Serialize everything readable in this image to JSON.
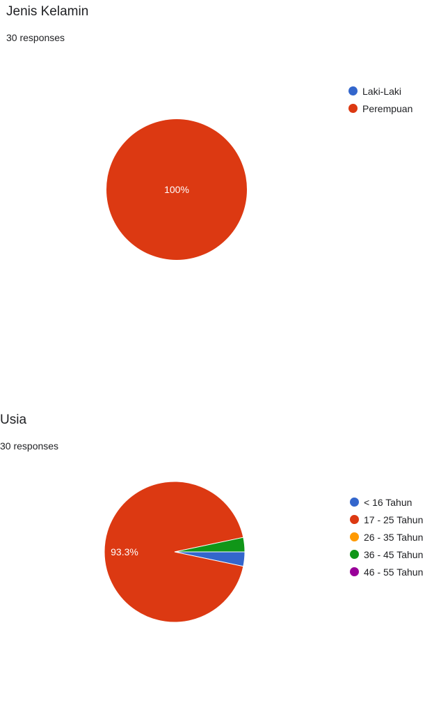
{
  "chart_data": [
    {
      "type": "pie",
      "title": "Jenis Kelamin",
      "subtitle": "30 responses",
      "categories": [
        "Laki-Laki",
        "Perempuan"
      ],
      "values": [
        0,
        100
      ],
      "data_labels": [
        "",
        "100%"
      ],
      "colors": [
        "#3366cc",
        "#dc3912"
      ],
      "legend": "right"
    },
    {
      "type": "pie",
      "title": "Usia",
      "subtitle": "30 responses",
      "categories": [
        "< 16 Tahun",
        "17 - 25 Tahun",
        "26 - 35 Tahun",
        "36 - 45 Tahun",
        "46 - 55 Tahun"
      ],
      "values": [
        3.3,
        93.3,
        0,
        3.3,
        0
      ],
      "data_labels": [
        "",
        "93.3%",
        "",
        "",
        ""
      ],
      "colors": [
        "#3366cc",
        "#dc3912",
        "#ff9900",
        "#109618",
        "#990099"
      ],
      "legend": "right"
    }
  ]
}
